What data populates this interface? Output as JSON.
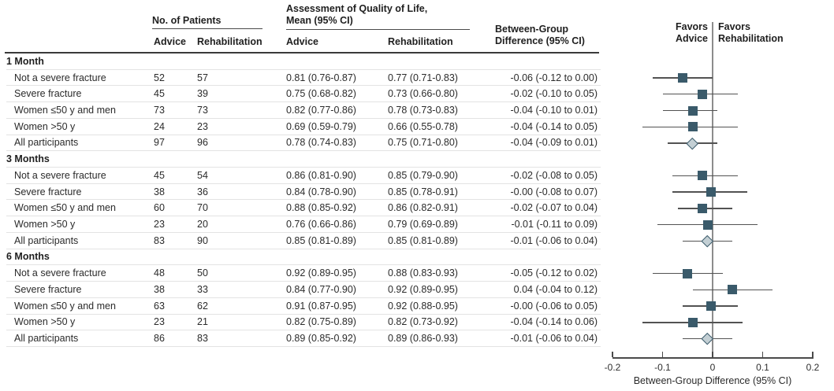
{
  "colors": {
    "square": "#3a5a6a",
    "diamond_fill": "#c3cfd4",
    "diamond_border": "#3a5a6a",
    "ci_line": "#525252",
    "zero_line": "#8c8c8c",
    "axis": "#4a4a4a"
  },
  "table": {
    "group_headers": {
      "patients": "No. of Patients",
      "qol_line1": "Assessment of Quality of Life,",
      "qol_line2": "Mean (95% CI)",
      "diff_line1": "Between-Group",
      "diff_line2": "Difference (95% CI)"
    },
    "sub_headers": {
      "n_advice": "Advice",
      "n_rehab": "Rehabilitation",
      "qol_advice": "Advice",
      "qol_rehab": "Rehabilitation"
    },
    "sections": [
      {
        "label": "1 Month",
        "rows": [
          {
            "label": "Not a severe fracture",
            "n_advice": "52",
            "n_rehab": "57",
            "qol_advice": "0.81 (0.76-0.87)",
            "qol_rehab": "0.77 (0.71-0.83)",
            "diff": "-0.06 (-0.12 to 0.00)",
            "est": -0.06,
            "lo": -0.12,
            "hi": 0.0,
            "marker": "square"
          },
          {
            "label": "Severe fracture",
            "n_advice": "45",
            "n_rehab": "39",
            "qol_advice": "0.75 (0.68-0.82)",
            "qol_rehab": "0.73 (0.66-0.80)",
            "diff": "-0.02 (-0.10 to 0.05)",
            "est": -0.02,
            "lo": -0.1,
            "hi": 0.05,
            "marker": "square"
          },
          {
            "label": "Women ≤50 y and men",
            "n_advice": "73",
            "n_rehab": "73",
            "qol_advice": "0.82 (0.77-0.86)",
            "qol_rehab": "0.78 (0.73-0.83)",
            "diff": "-0.04 (-0.10 to 0.01)",
            "est": -0.04,
            "lo": -0.1,
            "hi": 0.01,
            "marker": "square"
          },
          {
            "label": "Women >50 y",
            "n_advice": "24",
            "n_rehab": "23",
            "qol_advice": "0.69 (0.59-0.79)",
            "qol_rehab": "0.66 (0.55-0.78)",
            "diff": "-0.04 (-0.14 to 0.05)",
            "est": -0.04,
            "lo": -0.14,
            "hi": 0.05,
            "marker": "square"
          },
          {
            "label": "All participants",
            "n_advice": "97",
            "n_rehab": "96",
            "qol_advice": "0.78 (0.74-0.83)",
            "qol_rehab": "0.75 (0.71-0.80)",
            "diff": "-0.04 (-0.09 to 0.01)",
            "est": -0.04,
            "lo": -0.09,
            "hi": 0.01,
            "marker": "diamond"
          }
        ]
      },
      {
        "label": "3 Months",
        "rows": [
          {
            "label": "Not a severe fracture",
            "n_advice": "45",
            "n_rehab": "54",
            "qol_advice": "0.86 (0.81-0.90)",
            "qol_rehab": "0.85 (0.79-0.90)",
            "diff": "-0.02 (-0.08 to 0.05)",
            "est": -0.02,
            "lo": -0.08,
            "hi": 0.05,
            "marker": "square"
          },
          {
            "label": "Severe fracture",
            "n_advice": "38",
            "n_rehab": "36",
            "qol_advice": "0.84 (0.78-0.90)",
            "qol_rehab": "0.85 (0.78-0.91)",
            "diff": "-0.00 (-0.08 to 0.07)",
            "est": -0.003,
            "lo": -0.08,
            "hi": 0.07,
            "marker": "square"
          },
          {
            "label": "Women ≤50 y and men",
            "n_advice": "60",
            "n_rehab": "70",
            "qol_advice": "0.88 (0.85-0.92)",
            "qol_rehab": "0.86 (0.82-0.91)",
            "diff": "-0.02 (-0.07 to 0.04)",
            "est": -0.02,
            "lo": -0.07,
            "hi": 0.04,
            "marker": "square"
          },
          {
            "label": "Women >50 y",
            "n_advice": "23",
            "n_rehab": "20",
            "qol_advice": "0.76 (0.66-0.86)",
            "qol_rehab": "0.79 (0.69-0.89)",
            "diff": "-0.01 (-0.11 to 0.09)",
            "est": -0.01,
            "lo": -0.11,
            "hi": 0.09,
            "marker": "square"
          },
          {
            "label": "All participants",
            "n_advice": "83",
            "n_rehab": "90",
            "qol_advice": "0.85 (0.81-0.89)",
            "qol_rehab": "0.85 (0.81-0.89)",
            "diff": "-0.01 (-0.06 to 0.04)",
            "est": -0.01,
            "lo": -0.06,
            "hi": 0.04,
            "marker": "diamond"
          }
        ]
      },
      {
        "label": "6 Months",
        "rows": [
          {
            "label": "Not a severe fracture",
            "n_advice": "48",
            "n_rehab": "50",
            "qol_advice": "0.92 (0.89-0.95)",
            "qol_rehab": "0.88 (0.83-0.93)",
            "diff": "-0.05 (-0.12 to 0.02)",
            "est": -0.05,
            "lo": -0.12,
            "hi": 0.02,
            "marker": "square"
          },
          {
            "label": "Severe fracture",
            "n_advice": "38",
            "n_rehab": "33",
            "qol_advice": "0.84 (0.77-0.90)",
            "qol_rehab": "0.92 (0.89-0.95)",
            "diff": "0.04 (-0.04 to 0.12)",
            "est": 0.04,
            "lo": -0.04,
            "hi": 0.12,
            "marker": "square"
          },
          {
            "label": "Women ≤50 y and men",
            "n_advice": "63",
            "n_rehab": "62",
            "qol_advice": "0.91 (0.87-0.95)",
            "qol_rehab": "0.92 (0.88-0.95)",
            "diff": "-0.00 (-0.06 to 0.05)",
            "est": -0.003,
            "lo": -0.06,
            "hi": 0.05,
            "marker": "square"
          },
          {
            "label": "Women >50 y",
            "n_advice": "23",
            "n_rehab": "21",
            "qol_advice": "0.82 (0.75-0.89)",
            "qol_rehab": "0.82 (0.73-0.92)",
            "diff": "-0.04 (-0.14 to 0.06)",
            "est": -0.04,
            "lo": -0.14,
            "hi": 0.06,
            "marker": "square"
          },
          {
            "label": "All participants",
            "n_advice": "86",
            "n_rehab": "83",
            "qol_advice": "0.89 (0.85-0.92)",
            "qol_rehab": "0.89 (0.86-0.93)",
            "diff": "-0.01 (-0.06 to 0.04)",
            "est": -0.01,
            "lo": -0.06,
            "hi": 0.04,
            "marker": "diamond"
          }
        ]
      }
    ]
  },
  "plot": {
    "favors_left_line1": "Favors",
    "favors_left_line2": "Advice",
    "favors_right_line1": "Favors",
    "favors_right_line2": "Rehabilitation",
    "axis_ticks": [
      "-0.2",
      "-0.1",
      "0",
      "0.1",
      "0.2"
    ],
    "axis_label": "Between-Group Difference (95% CI)"
  },
  "chart_data": {
    "type": "scatter",
    "variant": "forest-plot",
    "xlabel": "Between-Group Difference (95% CI)",
    "xlim": [
      -0.2,
      0.2
    ],
    "x_ticks": [
      -0.2,
      -0.1,
      0,
      0.1,
      0.2
    ],
    "reference_line_x": 0,
    "favors_left": "Favors Advice",
    "favors_right": "Favors Rehabilitation",
    "marker_legend": {
      "square": "subgroup estimate",
      "diamond": "all participants (overall) estimate"
    },
    "groups": [
      {
        "name": "1 Month",
        "points": [
          {
            "label": "Not a severe fracture",
            "estimate": -0.06,
            "ci": [
              -0.12,
              0.0
            ],
            "marker": "square"
          },
          {
            "label": "Severe fracture",
            "estimate": -0.02,
            "ci": [
              -0.1,
              0.05
            ],
            "marker": "square"
          },
          {
            "label": "Women ≤50 y and men",
            "estimate": -0.04,
            "ci": [
              -0.1,
              0.01
            ],
            "marker": "square"
          },
          {
            "label": "Women >50 y",
            "estimate": -0.04,
            "ci": [
              -0.14,
              0.05
            ],
            "marker": "square"
          },
          {
            "label": "All participants",
            "estimate": -0.04,
            "ci": [
              -0.09,
              0.01
            ],
            "marker": "diamond"
          }
        ]
      },
      {
        "name": "3 Months",
        "points": [
          {
            "label": "Not a severe fracture",
            "estimate": -0.02,
            "ci": [
              -0.08,
              0.05
            ],
            "marker": "square"
          },
          {
            "label": "Severe fracture",
            "estimate": -0.0,
            "ci": [
              -0.08,
              0.07
            ],
            "marker": "square"
          },
          {
            "label": "Women ≤50 y and men",
            "estimate": -0.02,
            "ci": [
              -0.07,
              0.04
            ],
            "marker": "square"
          },
          {
            "label": "Women >50 y",
            "estimate": -0.01,
            "ci": [
              -0.11,
              0.09
            ],
            "marker": "square"
          },
          {
            "label": "All participants",
            "estimate": -0.01,
            "ci": [
              -0.06,
              0.04
            ],
            "marker": "diamond"
          }
        ]
      },
      {
        "name": "6 Months",
        "points": [
          {
            "label": "Not a severe fracture",
            "estimate": -0.05,
            "ci": [
              -0.12,
              0.02
            ],
            "marker": "square"
          },
          {
            "label": "Severe fracture",
            "estimate": 0.04,
            "ci": [
              -0.04,
              0.12
            ],
            "marker": "square"
          },
          {
            "label": "Women ≤50 y and men",
            "estimate": -0.0,
            "ci": [
              -0.06,
              0.05
            ],
            "marker": "square"
          },
          {
            "label": "Women >50 y",
            "estimate": -0.04,
            "ci": [
              -0.14,
              0.06
            ],
            "marker": "square"
          },
          {
            "label": "All participants",
            "estimate": -0.01,
            "ci": [
              -0.06,
              0.04
            ],
            "marker": "diamond"
          }
        ]
      }
    ]
  }
}
